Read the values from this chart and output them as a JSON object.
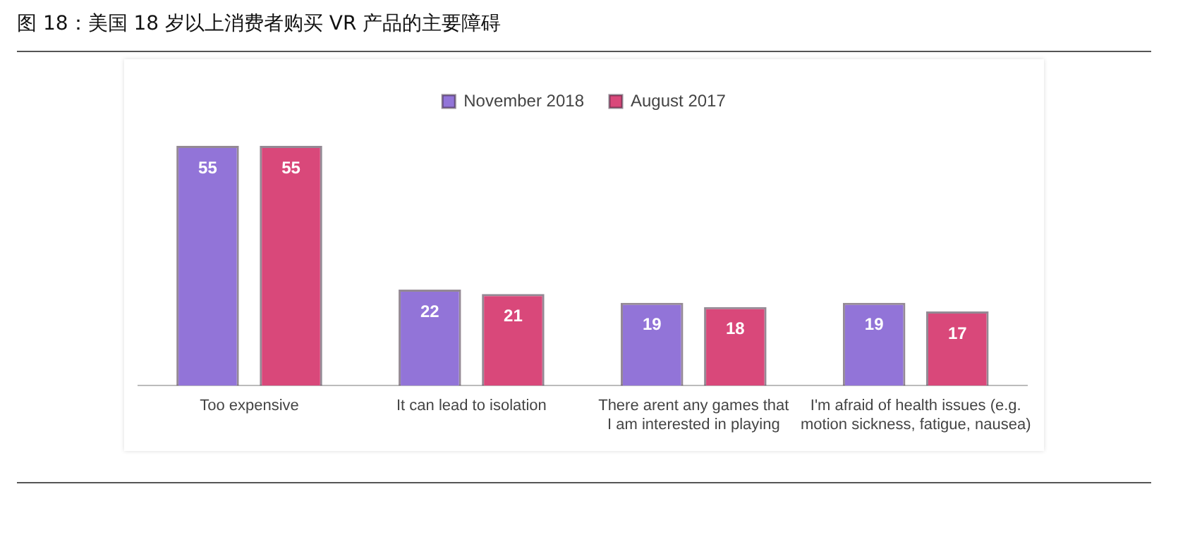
{
  "chart_data": {
    "type": "bar",
    "title": "图 18：美国 18 岁以上消费者购买 VR 产品的主要障碍",
    "categories": [
      "Too expensive",
      "It can lead to isolation",
      "There arent any games that\nI am interested in playing",
      "I'm afraid of health issues (e.g.\nmotion sickness, fatigue, nausea)"
    ],
    "series": [
      {
        "name": "November 2018",
        "color": "#9274d8",
        "values": [
          55,
          22,
          19,
          19
        ]
      },
      {
        "name": "August 2017",
        "color": "#d9487a",
        "values": [
          55,
          21,
          18,
          17
        ]
      }
    ],
    "data_labels": true,
    "legend": "top",
    "grid": false
  }
}
